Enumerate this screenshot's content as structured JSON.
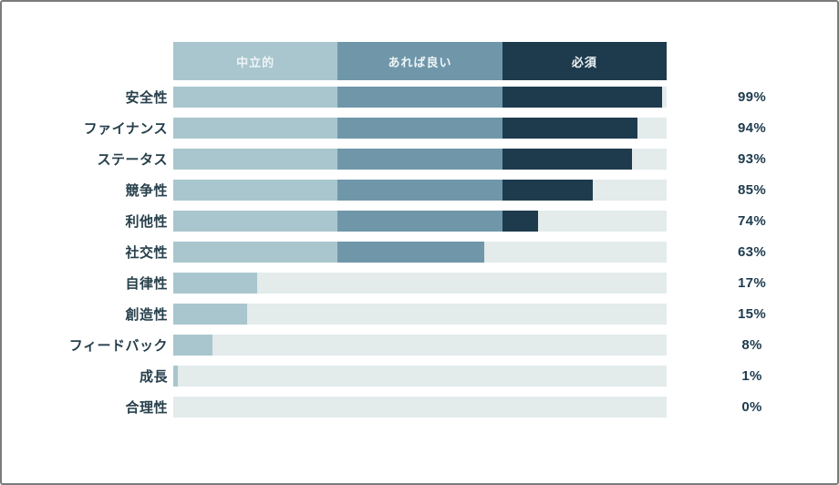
{
  "chart_data": {
    "type": "bar",
    "orientation": "horizontal-stacked",
    "title": "",
    "legend_position": "top",
    "legend": [
      {
        "label": "中立的",
        "color": "#a9c6ce"
      },
      {
        "label": "あれば良い",
        "color": "#6f97a9"
      },
      {
        "label": "必須",
        "color": "#1e3b4e"
      }
    ],
    "categories": [
      "安全性",
      "ファイナンス",
      "ステータス",
      "競争性",
      "利他性",
      "社交性",
      "自律性",
      "創造性",
      "フィードバック",
      "成長",
      "合理性"
    ],
    "values": [
      99,
      94,
      93,
      85,
      74,
      63,
      17,
      15,
      8,
      1,
      0
    ],
    "value_labels": [
      "99%",
      "94%",
      "93%",
      "85%",
      "74%",
      "63%",
      "17%",
      "15%",
      "8%",
      "1%",
      "0%"
    ],
    "xlim": [
      0,
      100
    ],
    "segment_thresholds": [
      33.333,
      66.667
    ],
    "track_color": "#e3ebeb",
    "grid": "off"
  },
  "colors": {
    "card_border": "#7b7b7b",
    "background": "#ffffff",
    "category_label_text": "#27404c",
    "value_label_text": "#1e3b4e",
    "legend_text": "#eef4f6"
  }
}
